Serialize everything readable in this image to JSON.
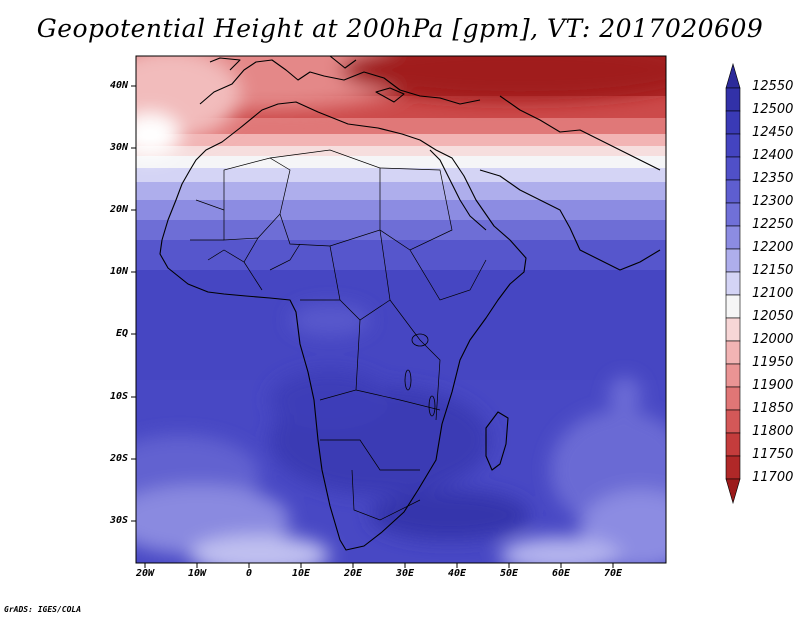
{
  "title": "Geopotential Height at 200hPa [gpm], VT: 2017020609",
  "credit": "GrADS: IGES/COLA",
  "lat_ticks": [
    {
      "label": "40N",
      "lat": 40
    },
    {
      "label": "30N",
      "lat": 30
    },
    {
      "label": "20N",
      "lat": 20
    },
    {
      "label": "10N",
      "lat": 10
    },
    {
      "label": "EQ",
      "lat": 0
    },
    {
      "label": "10S",
      "lat": -10
    },
    {
      "label": "20S",
      "lat": -20
    },
    {
      "label": "30S",
      "lat": -30
    }
  ],
  "lon_ticks": [
    {
      "label": "20W",
      "lon": -20
    },
    {
      "label": "10W",
      "lon": -10
    },
    {
      "label": "0",
      "lon": 0
    },
    {
      "label": "10E",
      "lon": 10
    },
    {
      "label": "20E",
      "lon": 20
    },
    {
      "label": "30E",
      "lon": 30
    },
    {
      "label": "40E",
      "lon": 40
    },
    {
      "label": "50E",
      "lon": 50
    },
    {
      "label": "60E",
      "lon": 60
    },
    {
      "label": "70E",
      "lon": 70
    }
  ],
  "map_extent": {
    "lon_min": -22,
    "lon_max": 80,
    "lat_min": -37,
    "lat_max": 45
  },
  "colorbar": {
    "levels": [
      "12550",
      "12500",
      "12450",
      "12400",
      "12350",
      "12300",
      "12250",
      "12200",
      "12150",
      "12100",
      "12050",
      "12000",
      "11950",
      "11900",
      "11850",
      "11800",
      "11750",
      "11700"
    ],
    "colors_top_to_bottom": [
      "#2c2a9a",
      "#3231a8",
      "#3a3ab6",
      "#4444c0",
      "#5050c8",
      "#5e5ed0",
      "#7070d8",
      "#8c8ce2",
      "#aeaeec",
      "#d4d4f5",
      "#f6f6f6",
      "#f7d6d6",
      "#f2b4b4",
      "#ea9494",
      "#e07676",
      "#d45858",
      "#c43c3c",
      "#b02828",
      "#9c1a1a"
    ]
  }
}
